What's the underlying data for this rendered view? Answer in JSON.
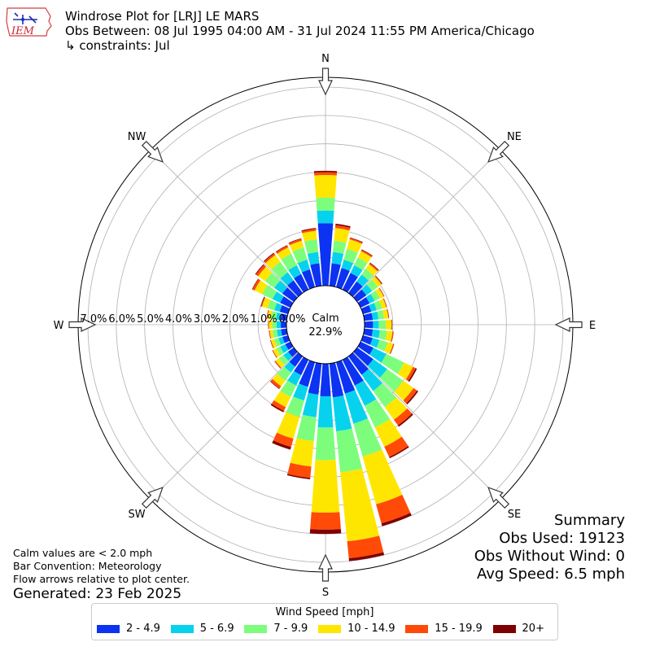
{
  "header": {
    "title": "Windrose Plot for [LRJ] LE MARS",
    "obs_between": "Obs Between: 08 Jul 1995 04:00 AM - 31 Jul 2024 11:55 PM America/Chicago",
    "constraints": "↳ constraints: Jul"
  },
  "logo": {
    "text": "IEM"
  },
  "notes": {
    "calm": "Calm values are < 2.0 mph",
    "convention": "Bar Convention: Meteorology",
    "flow": "Flow arrows relative to plot center.",
    "generated": "Generated: 23 Feb 2025"
  },
  "summary": {
    "title": "Summary",
    "obs_used": "Obs Used: 19123",
    "obs_without_wind": "Obs Without Wind: 0",
    "avg_speed": "Avg Speed: 6.5 mph"
  },
  "center": {
    "label": "Calm",
    "value": "22.9%"
  },
  "legend": {
    "title": "Wind Speed [mph]",
    "items": [
      {
        "label": "2 - 4.9",
        "color": "#0c32f2"
      },
      {
        "label": "5 - 6.9",
        "color": "#06d2ee"
      },
      {
        "label": "7 - 9.9",
        "color": "#7dfd7c"
      },
      {
        "label": "10 - 14.9",
        "color": "#ffe600"
      },
      {
        "label": "15 - 19.9",
        "color": "#ff4a08"
      },
      {
        "label": "20+",
        "color": "#7f0000"
      }
    ]
  },
  "chart_data": {
    "type": "windrose",
    "title": "Windrose Plot for [LRJ] LE MARS",
    "calm_percent": 22.9,
    "radial_ticks": [
      "0.0%",
      "1.0%",
      "2.0%",
      "3.0%",
      "4.0%",
      "5.0%",
      "6.0%",
      "7.0%"
    ],
    "radial_max": 7.0,
    "compass_labels": [
      "N",
      "NE",
      "E",
      "SE",
      "S",
      "SW",
      "W",
      "NW"
    ],
    "bin_colors": [
      "#0c32f2",
      "#06d2ee",
      "#7dfd7c",
      "#ffe600",
      "#ff4a08",
      "#7f0000"
    ],
    "directions": [
      {
        "dir": 0,
        "cum": [
          2.2,
          2.65,
          3.1,
          3.9,
          4.0,
          4.05
        ]
      },
      {
        "dir": 10,
        "cum": [
          0.8,
          1.2,
          1.6,
          2.05,
          2.15,
          2.2
        ]
      },
      {
        "dir": 20,
        "cum": [
          0.7,
          1.0,
          1.4,
          1.75,
          1.8,
          1.82
        ]
      },
      {
        "dir": 30,
        "cum": [
          0.65,
          0.95,
          1.25,
          1.5,
          1.55,
          1.57
        ]
      },
      {
        "dir": 40,
        "cum": [
          0.5,
          0.8,
          1.05,
          1.25,
          1.3,
          1.32
        ]
      },
      {
        "dir": 50,
        "cum": [
          0.4,
          0.65,
          0.9,
          1.05,
          1.08,
          1.1
        ]
      },
      {
        "dir": 60,
        "cum": [
          0.35,
          0.55,
          0.75,
          0.9,
          0.92,
          0.93
        ]
      },
      {
        "dir": 70,
        "cum": [
          0.3,
          0.5,
          0.7,
          0.85,
          0.87,
          0.88
        ]
      },
      {
        "dir": 80,
        "cum": [
          0.3,
          0.5,
          0.7,
          0.85,
          0.87,
          0.88
        ]
      },
      {
        "dir": 90,
        "cum": [
          0.3,
          0.5,
          0.75,
          0.95,
          0.97,
          0.98
        ]
      },
      {
        "dir": 100,
        "cum": [
          0.3,
          0.55,
          0.8,
          1.0,
          1.03,
          1.04
        ]
      },
      {
        "dir": 110,
        "cum": [
          0.35,
          0.6,
          0.9,
          1.1,
          1.13,
          1.14
        ]
      },
      {
        "dir": 120,
        "cum": [
          0.5,
          1.0,
          1.7,
          2.05,
          2.15,
          2.2
        ]
      },
      {
        "dir": 130,
        "cum": [
          0.7,
          1.3,
          2.0,
          2.45,
          2.6,
          2.65
        ]
      },
      {
        "dir": 140,
        "cum": [
          0.8,
          1.5,
          2.2,
          2.75,
          3.0,
          3.05
        ]
      },
      {
        "dir": 150,
        "cum": [
          1.0,
          1.8,
          2.65,
          3.4,
          3.8,
          3.85
        ]
      },
      {
        "dir": 160,
        "cum": [
          1.15,
          2.25,
          3.45,
          5.2,
          5.9,
          6.0
        ]
      },
      {
        "dir": 170,
        "cum": [
          1.2,
          2.4,
          3.85,
          6.3,
          6.9,
          7.0
        ]
      },
      {
        "dir": 180,
        "cum": [
          1.15,
          2.25,
          3.4,
          5.25,
          5.85,
          6.0
        ]
      },
      {
        "dir": 190,
        "cum": [
          1.1,
          1.9,
          2.75,
          3.65,
          4.05,
          4.1
        ]
      },
      {
        "dir": 200,
        "cum": [
          0.9,
          1.4,
          2.0,
          2.8,
          3.1,
          3.2
        ]
      },
      {
        "dir": 210,
        "cum": [
          0.6,
          1.0,
          1.45,
          1.85,
          2.0,
          2.05
        ]
      },
      {
        "dir": 220,
        "cum": [
          0.45,
          0.7,
          1.05,
          1.3,
          1.4,
          1.42
        ]
      },
      {
        "dir": 230,
        "cum": [
          0.25,
          0.45,
          0.65,
          0.8,
          0.83,
          0.84
        ]
      },
      {
        "dir": 240,
        "cum": [
          0.2,
          0.4,
          0.55,
          0.68,
          0.7,
          0.71
        ]
      },
      {
        "dir": 250,
        "cum": [
          0.2,
          0.35,
          0.5,
          0.62,
          0.64,
          0.65
        ]
      },
      {
        "dir": 260,
        "cum": [
          0.2,
          0.35,
          0.5,
          0.6,
          0.62,
          0.63
        ]
      },
      {
        "dir": 270,
        "cum": [
          0.2,
          0.35,
          0.5,
          0.62,
          0.64,
          0.65
        ]
      },
      {
        "dir": 280,
        "cum": [
          0.22,
          0.38,
          0.55,
          0.68,
          0.7,
          0.71
        ]
      },
      {
        "dir": 290,
        "cum": [
          0.3,
          0.5,
          0.75,
          0.95,
          0.98,
          1.0
        ]
      },
      {
        "dir": 300,
        "cum": [
          0.4,
          0.7,
          1.1,
          1.4,
          1.48,
          1.5
        ]
      },
      {
        "dir": 310,
        "cum": [
          0.5,
          0.85,
          1.25,
          1.55,
          1.65,
          1.68
        ]
      },
      {
        "dir": 320,
        "cum": [
          0.55,
          0.9,
          1.35,
          1.65,
          1.72,
          1.75
        ]
      },
      {
        "dir": 330,
        "cum": [
          0.6,
          0.95,
          1.4,
          1.65,
          1.72,
          1.74
        ]
      },
      {
        "dir": 340,
        "cum": [
          0.65,
          1.0,
          1.45,
          1.7,
          1.77,
          1.79
        ]
      },
      {
        "dir": 350,
        "cum": [
          0.8,
          1.2,
          1.65,
          1.95,
          2.02,
          2.05
        ]
      }
    ]
  }
}
